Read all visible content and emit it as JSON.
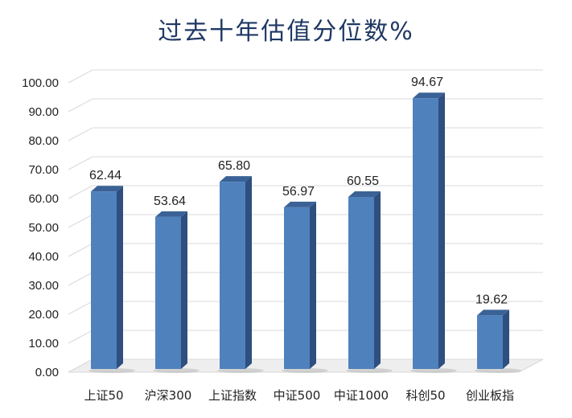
{
  "chart_data": {
    "type": "bar",
    "title": "过去十年估值分位数%",
    "categories": [
      "上证50",
      "沪深300",
      "上证指数",
      "中证500",
      "中证1000",
      "科创50",
      "创业板指"
    ],
    "values": [
      62.44,
      53.64,
      65.8,
      56.97,
      60.55,
      94.67,
      19.62
    ],
    "value_labels": [
      "62.44",
      "53.64",
      "65.80",
      "56.97",
      "60.55",
      "94.67",
      "19.62"
    ],
    "y_ticks": [
      "0.00",
      "10.00",
      "20.00",
      "30.00",
      "40.00",
      "50.00",
      "60.00",
      "70.00",
      "80.00",
      "90.00",
      "100.00"
    ],
    "xlabel": "",
    "ylabel": "",
    "ylim": [
      0,
      100
    ],
    "grid": true,
    "style": "3d-column",
    "colors": {
      "bar_front": "#4f81bd",
      "bar_side": "#2e4f7f",
      "bar_top": "#3a6296",
      "title": "#1f3864",
      "grid": "#d9d9d9"
    }
  }
}
